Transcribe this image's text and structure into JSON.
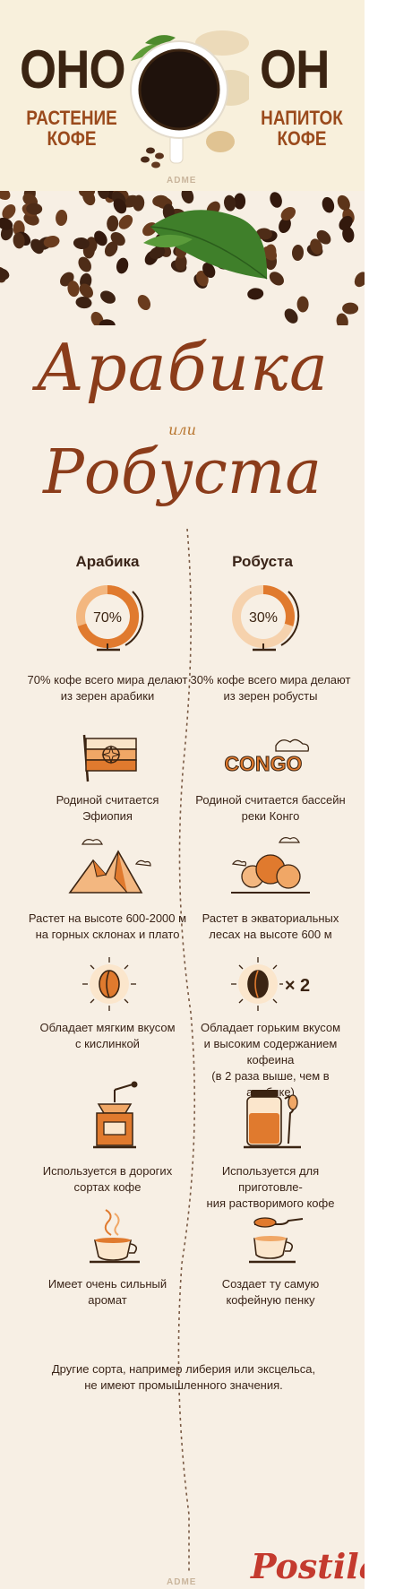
{
  "header": {
    "left_big": "ОНО",
    "left_sub_1": "РАСТЕНИЕ",
    "left_sub_2": "КОФЕ",
    "right_big": "ОН",
    "right_sub_1": "НАПИТОК",
    "right_sub_2": "КОФЕ",
    "brand": "ADME"
  },
  "title": {
    "line1": "Арабика",
    "connector": "или",
    "line2": "Робуста"
  },
  "columns": {
    "left_heading": "Арабика",
    "right_heading": "Робуста"
  },
  "rows": [
    {
      "left_badge": "70%",
      "right_badge": "30%",
      "left_text_1": "70% кофе всего мира делают",
      "left_text_2": "из зерен арабики",
      "right_text_1": "30% кофе всего мира делают",
      "right_text_2": "из зерен робусты"
    },
    {
      "right_badge": "CONGO",
      "left_text_1": "Родиной считается",
      "left_text_2": "Эфиопия",
      "right_text_1": "Родиной считается бассейн",
      "right_text_2": "реки Конго"
    },
    {
      "left_text_1": "Растет на высоте 600-2000 м",
      "left_text_2": "на горных склонах и плато",
      "right_text_1": "Растет в экваториальных",
      "right_text_2": "лесах на высоте 600 м"
    },
    {
      "right_badge": "× 2",
      "left_text_1": "Обладает мягким вкусом",
      "left_text_2": "с кислинкой",
      "right_text_1": "Обладает горьким вкусом",
      "right_text_2": "и высоким содержанием кофеина",
      "right_text_3": "(в 2 раза выше, чем в арабике)"
    },
    {
      "left_text_1": "Используется в дорогих",
      "left_text_2": "сортах кофе",
      "right_text_1": "Используется для приготовле-",
      "right_text_2": "ния растворимого кофе"
    },
    {
      "left_text_1": "Имеет очень сильный",
      "left_text_2": "аромат",
      "right_text_1": "Создает ту самую",
      "right_text_2": "кофейную пенку"
    }
  ],
  "footer": {
    "line1": "Другие сорта, например либерия или эксцельса,",
    "line2": "не имеют промышленного значения.",
    "brand": "ADME",
    "watermark": "Postila.ru"
  },
  "colors": {
    "dark_brown": "#3b2412",
    "rust": "#9a4a1c",
    "orange": "#e07a2e",
    "cream": "#f7efe4"
  }
}
